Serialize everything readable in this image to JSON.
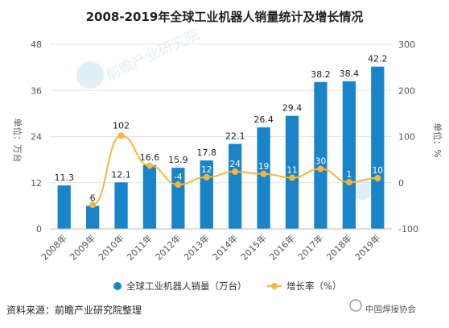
{
  "chart_data": {
    "type": "bar",
    "title": "2008-2019年全球工业机器人销量统计及增长情况",
    "categories": [
      "2008年",
      "2009年",
      "2010年",
      "2011年",
      "2012年",
      "2013年",
      "2014年",
      "2015年",
      "2016年",
      "2017年",
      "2018年",
      "2019年"
    ],
    "series": [
      {
        "name": "全球工业机器人销量（万台）",
        "type": "bar",
        "axis": "left",
        "color": "#1a84c9",
        "values": [
          11.3,
          6,
          12.1,
          16.6,
          15.9,
          17.8,
          22.1,
          26.4,
          29.4,
          38.2,
          38.4,
          42.2
        ],
        "labels": [
          "11.3",
          "6",
          "12.1",
          "16.6",
          "15.9",
          "17.8",
          "22.1",
          "26.4",
          "29.4",
          "38.2",
          "38.4",
          "42.2"
        ]
      },
      {
        "name": "增长率（%）",
        "type": "line",
        "axis": "right",
        "color": "#f5b73b",
        "values": [
          null,
          -48,
          102,
          37,
          -4,
          12,
          24,
          19,
          11,
          30,
          1,
          10
        ],
        "labels": [
          "",
          "",
          "102",
          "",
          "-4",
          "12",
          "24",
          "19",
          "11",
          "30",
          "1",
          "10"
        ]
      }
    ],
    "ylabel": "单位：万台",
    "y2label": "单位：%",
    "ylim": [
      0,
      48
    ],
    "yticks": [
      "0",
      "12",
      "24",
      "36",
      "48"
    ],
    "y2lim": [
      -100,
      300
    ],
    "y2ticks": [
      "-100",
      "0",
      "100",
      "200",
      "300"
    ],
    "grid": true,
    "legend": "bottom"
  },
  "source": "资料来源：前瞻产业研究院整理",
  "watermarks": [
    "前瞻产业研究院",
    "中国焊接协会"
  ]
}
